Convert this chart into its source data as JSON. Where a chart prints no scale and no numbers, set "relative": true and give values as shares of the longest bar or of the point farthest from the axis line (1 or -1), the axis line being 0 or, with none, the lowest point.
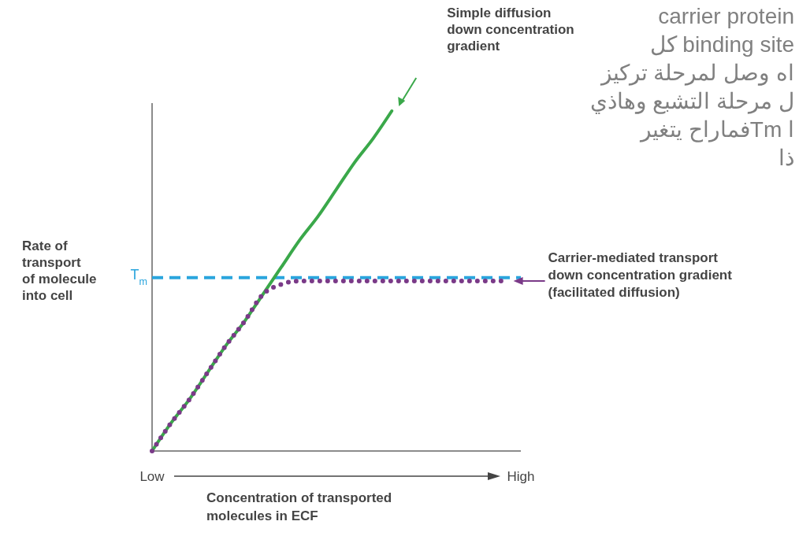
{
  "chart_data": {
    "type": "line",
    "relative": true,
    "xlabel": "Concentration of transported\nmolecules in ECF",
    "ylabel": "Rate of\ntransport\nof molecule\ninto cell",
    "categories": [
      "Low",
      null,
      null,
      null,
      null,
      null,
      null,
      null,
      null,
      null,
      null,
      null,
      null,
      null,
      null,
      null,
      null,
      null,
      null,
      null,
      "High"
    ],
    "series": [
      {
        "name": "Simple diffusion\ndown concentration\ngradient",
        "line_style": "solid",
        "color": "#3aa84a",
        "values": [
          0,
          0.08,
          0.15,
          0.23,
          0.31,
          0.38,
          0.46,
          0.54,
          0.62,
          0.69,
          0.77,
          0.85,
          0.92,
          1,
          null,
          null,
          null,
          null,
          null,
          null,
          null
        ]
      },
      {
        "name": "Carrier-mediated transport\ndown concentration gradient\n(facilitated diffusion)",
        "line_style": "dotted",
        "color": "#7a3a88",
        "values": [
          0,
          0.08,
          0.15,
          0.23,
          0.31,
          0.38,
          0.46,
          0.49,
          0.5,
          0.5,
          0.5,
          0.5,
          0.5,
          0.5,
          0.5,
          0.5,
          0.5,
          0.5,
          0.5,
          0.5,
          null
        ]
      }
    ],
    "ref_lines": [
      {
        "axis": "y",
        "value": 0.51,
        "label": "T$_{m}$",
        "color": "#2aa5dd",
        "line_style": "dashed"
      }
    ],
    "annotations": [
      "carrier protein",
      "binding site كل",
      "اه وصل لمرحلة تركيز",
      "ل مرحلة التشبع وهاذي",
      "ا  Tmفماراح يتغير",
      "ذا"
    ]
  }
}
